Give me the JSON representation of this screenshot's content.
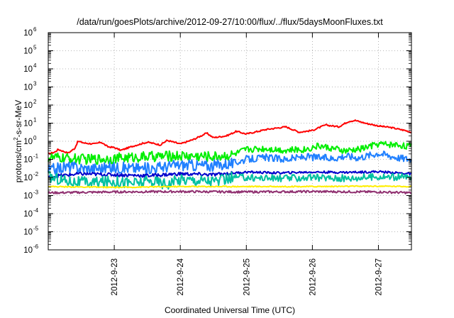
{
  "chart_data": {
    "type": "line",
    "title": "/data/run/goesPlots/archive/2012-09-27/10:00/flux/../flux/5daysMoonFluxes.txt",
    "xlabel": "Coordinated Universal Time (UTC)",
    "ylabel": "protons/cm²-s-sr-MeV",
    "xlim": [
      0,
      5.5
    ],
    "ylim": [
      -6,
      6
    ],
    "yscale": "log",
    "grid": true,
    "x_tick_labels": [
      {
        "label": "2012-9-23",
        "pos": 1
      },
      {
        "label": "2012-9-24",
        "pos": 2
      },
      {
        "label": "2012-9-25",
        "pos": 3
      },
      {
        "label": "2012-9-26",
        "pos": 4
      },
      {
        "label": "2012-9-27",
        "pos": 5
      }
    ],
    "y_tick_labels": [
      {
        "base": "10",
        "exp": "-6",
        "pos": -6
      },
      {
        "base": "10",
        "exp": "-5",
        "pos": -5
      },
      {
        "base": "10",
        "exp": "-4",
        "pos": -4
      },
      {
        "base": "10",
        "exp": "-3",
        "pos": -3
      },
      {
        "base": "10",
        "exp": "-2",
        "pos": -2
      },
      {
        "base": "10",
        "exp": "-1",
        "pos": -1
      },
      {
        "base": "10",
        "exp": "0",
        "pos": 0
      },
      {
        "base": "10",
        "exp": "1",
        "pos": 1
      },
      {
        "base": "10",
        "exp": "2",
        "pos": 2
      },
      {
        "base": "10",
        "exp": "3",
        "pos": 3
      },
      {
        "base": "10",
        "exp": "4",
        "pos": 4
      },
      {
        "base": "10",
        "exp": "5",
        "pos": 5
      },
      {
        "base": "10",
        "exp": "6",
        "pos": 6
      }
    ],
    "series": [
      {
        "color": "#ff0000",
        "noise": 0.04,
        "x": [
          0,
          0.1,
          0.15,
          0.3,
          0.4,
          0.45,
          0.55,
          0.7,
          0.8,
          0.9,
          1.0,
          1.1,
          1.3,
          1.5,
          1.7,
          1.8,
          2.0,
          2.2,
          2.4,
          2.5,
          2.7,
          2.85,
          3.0,
          3.3,
          3.6,
          3.8,
          4.0,
          4.2,
          4.4,
          4.55,
          4.65,
          4.8,
          5.0,
          5.2,
          5.4,
          5.5
        ],
        "y": [
          -0.7,
          -0.6,
          -0.45,
          -0.65,
          -0.4,
          0.0,
          -0.1,
          -0.15,
          -0.05,
          -0.3,
          -0.35,
          -0.5,
          -0.25,
          -0.05,
          -0.2,
          0.05,
          -0.15,
          0.1,
          0.45,
          0.2,
          0.3,
          0.55,
          0.4,
          0.65,
          0.8,
          0.5,
          0.6,
          0.9,
          0.8,
          1.1,
          1.15,
          1.0,
          0.85,
          0.75,
          0.6,
          0.5
        ]
      },
      {
        "color": "#00ee00",
        "noise": 0.18,
        "x": [
          0,
          0.3,
          0.6,
          1.0,
          1.5,
          2.0,
          2.5,
          2.8,
          3.0,
          3.3,
          3.6,
          3.9,
          4.1,
          4.3,
          4.5,
          4.7,
          5.0,
          5.3,
          5.5
        ],
        "y": [
          -0.9,
          -0.95,
          -1.0,
          -0.95,
          -0.85,
          -0.8,
          -0.85,
          -0.75,
          -0.45,
          -0.4,
          -0.5,
          -0.45,
          -0.25,
          -0.4,
          -0.55,
          -0.45,
          -0.15,
          -0.2,
          -0.3
        ]
      },
      {
        "color": "#2080ff",
        "noise": 0.2,
        "x": [
          0,
          0.3,
          0.6,
          1.0,
          1.5,
          2.0,
          2.5,
          2.8,
          3.0,
          3.3,
          3.6,
          3.9,
          4.1,
          4.3,
          4.5,
          4.7,
          5.0,
          5.3,
          5.5
        ],
        "y": [
          -1.6,
          -1.4,
          -1.5,
          -1.45,
          -1.5,
          -1.3,
          -1.35,
          -1.2,
          -1.0,
          -0.9,
          -1.0,
          -0.85,
          -0.9,
          -0.95,
          -0.8,
          -0.9,
          -0.65,
          -0.9,
          -1.0
        ]
      },
      {
        "color": "#0000cc",
        "noise": 0.06,
        "x": [
          0,
          0.5,
          1.0,
          1.5,
          2.0,
          2.5,
          3.0,
          3.5,
          4.0,
          4.5,
          5.0,
          5.5
        ],
        "y": [
          -1.95,
          -1.8,
          -1.85,
          -1.9,
          -1.8,
          -1.85,
          -1.7,
          -1.75,
          -1.7,
          -1.72,
          -1.68,
          -1.8
        ]
      },
      {
        "color": "#00c0a0",
        "noise": 0.2,
        "x": [
          0,
          0.3,
          0.6,
          1.0,
          1.3,
          1.6,
          1.8,
          2.0,
          2.3,
          2.6,
          2.8,
          3.0,
          3.5,
          4.0,
          4.5,
          5.0,
          5.5
        ],
        "y": [
          -1.95,
          -2.2,
          -2.3,
          -2.2,
          -2.3,
          -2.2,
          -2.35,
          -2.1,
          -2.15,
          -2.2,
          -2.0,
          -2.0,
          -2.05,
          -2.0,
          -2.05,
          -1.95,
          -2.0
        ]
      },
      {
        "color": "#ffee00",
        "noise": 0.03,
        "x": [
          0,
          1.0,
          2.0,
          3.0,
          4.0,
          5.0,
          5.5
        ],
        "y": [
          -2.5,
          -2.55,
          -2.5,
          -2.5,
          -2.5,
          -2.48,
          -2.5
        ]
      },
      {
        "color": "#903070",
        "noise": 0.06,
        "x": [
          0,
          1.0,
          2.0,
          3.0,
          4.0,
          5.0,
          5.5
        ],
        "y": [
          -2.85,
          -2.8,
          -2.78,
          -2.8,
          -2.78,
          -2.8,
          -2.85
        ]
      }
    ]
  }
}
